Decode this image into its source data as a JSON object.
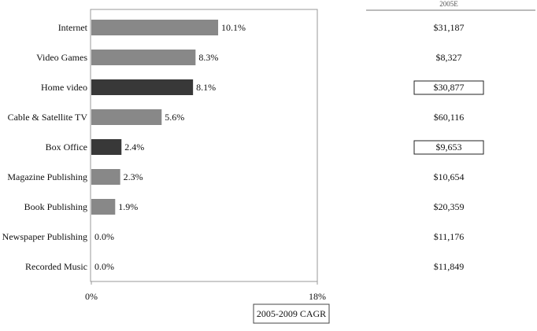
{
  "chart_data": {
    "type": "bar",
    "orientation": "horizontal",
    "categories": [
      "Internet",
      "Video Games",
      "Home video",
      "Cable & Satellite TV",
      "Box Office",
      "Magazine Publishing",
      "Book Publishing",
      "Newspaper Publishing",
      "Recorded Music"
    ],
    "values": [
      10.1,
      8.3,
      8.1,
      5.6,
      2.4,
      2.3,
      1.9,
      0.0,
      0.0
    ],
    "value_labels": [
      "10.1%",
      "8.3%",
      "8.1%",
      "5.6%",
      "2.4%",
      "2.3%",
      "1.9%",
      "0.0%",
      "0.0%"
    ],
    "colors": [
      "#888888",
      "#888888",
      "#383838",
      "#888888",
      "#383838",
      "#888888",
      "#888888",
      "#888888",
      "#888888"
    ],
    "xlim": [
      0,
      18
    ],
    "xticks": [
      {
        "value": 0,
        "label": "0%"
      },
      {
        "value": 18,
        "label": "18%"
      }
    ],
    "x_label": "2005-2009 CAGR",
    "table": {
      "header": "2005E",
      "values": [
        "$31,187",
        "$8,327",
        "$30,877",
        "$60,116",
        "$9,653",
        "$10,654",
        "$20,359",
        "$11,176",
        "$11,849"
      ],
      "boxed": [
        false,
        false,
        true,
        false,
        true,
        false,
        false,
        false,
        false
      ]
    }
  }
}
